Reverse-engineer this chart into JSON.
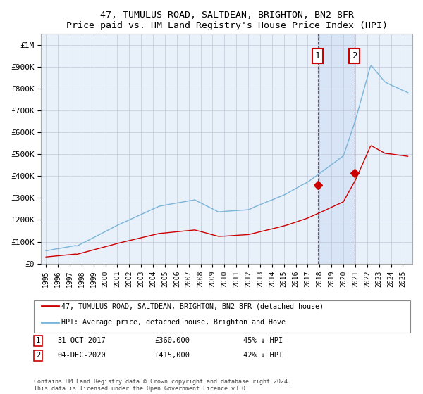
{
  "title": "47, TUMULUS ROAD, SALTDEAN, BRIGHTON, BN2 8FR",
  "subtitle": "Price paid vs. HM Land Registry's House Price Index (HPI)",
  "yticks": [
    0,
    100000,
    200000,
    300000,
    400000,
    500000,
    600000,
    700000,
    800000,
    900000,
    1000000
  ],
  "ytick_labels": [
    "£0",
    "£100K",
    "£200K",
    "£300K",
    "£400K",
    "£500K",
    "£600K",
    "£700K",
    "£800K",
    "£900K",
    "£1M"
  ],
  "hpi_color": "#7ab4d8",
  "price_color": "#cc0000",
  "transaction1_date": "31-OCT-2017",
  "transaction1_price": 360000,
  "transaction1_label": "45% ↓ HPI",
  "transaction2_date": "04-DEC-2020",
  "transaction2_price": 415000,
  "transaction2_label": "42% ↓ HPI",
  "legend1": "47, TUMULUS ROAD, SALTDEAN, BRIGHTON, BN2 8FR (detached house)",
  "legend2": "HPI: Average price, detached house, Brighton and Hove",
  "footnote": "Contains HM Land Registry data © Crown copyright and database right 2024.\nThis data is licensed under the Open Government Licence v3.0.",
  "plot_bg_color": "#e8f0fa",
  "grid_color": "#c0c8d8",
  "shade_color": "#ccdff5",
  "t1_x": 2017.833,
  "t2_x": 2020.917,
  "t1_y": 360000,
  "t2_y": 415000,
  "xlim_left": 1994.6,
  "xlim_right": 2025.8,
  "ylim_top": 1050000
}
